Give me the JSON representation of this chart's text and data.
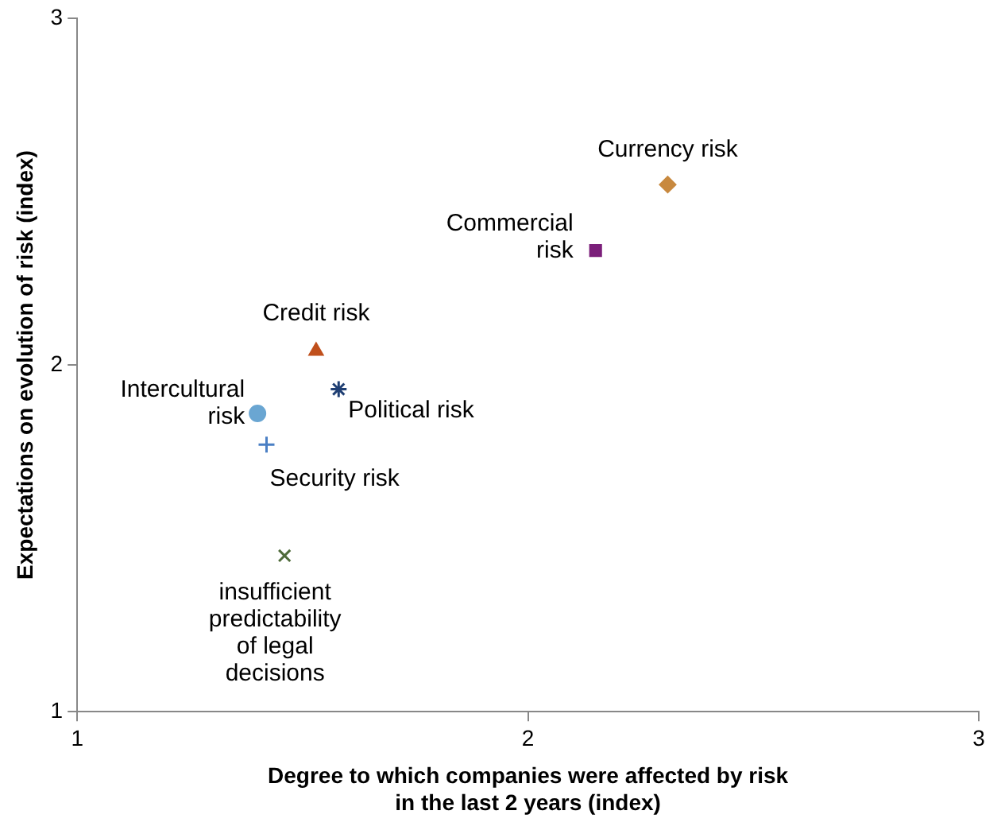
{
  "chart_data": {
    "type": "scatter",
    "xlabel": "Degree to which companies were affected by risk in the last 2 years (index)",
    "ylabel": "Expectations on evolution of risk (index)",
    "xlim": [
      1,
      3
    ],
    "xticks": [
      1,
      2,
      3
    ],
    "ylim": [
      1,
      3
    ],
    "yticks": [
      1,
      2,
      3
    ],
    "grid": false,
    "legend": false,
    "series": [
      {
        "name": "Currency risk",
        "color": "#c8893f",
        "marker": "diamond",
        "x": [
          2.31
        ],
        "values": [
          2.52
        ]
      },
      {
        "name": "Commercial risk",
        "color": "#7b1f7a",
        "marker": "square",
        "x": [
          2.15
        ],
        "values": [
          2.33
        ]
      },
      {
        "name": "Credit risk",
        "color": "#c0501c",
        "marker": "triangle",
        "x": [
          1.53
        ],
        "values": [
          2.04
        ]
      },
      {
        "name": "Political risk",
        "color": "#1f3f73",
        "marker": "cross",
        "x": [
          1.58
        ],
        "values": [
          1.93
        ]
      },
      {
        "name": "Intercultural risk",
        "color": "#6aa6d2",
        "marker": "circle",
        "x": [
          1.4
        ],
        "values": [
          1.86
        ]
      },
      {
        "name": "Security risk",
        "color": "#4a7fc4",
        "marker": "cross",
        "x": [
          1.42
        ],
        "values": [
          1.77
        ]
      },
      {
        "name": "insufficient predictability of legal decisions",
        "color": "#4f6b3a",
        "marker": "cross",
        "x": [
          1.46
        ],
        "values": [
          1.45
        ]
      }
    ]
  }
}
